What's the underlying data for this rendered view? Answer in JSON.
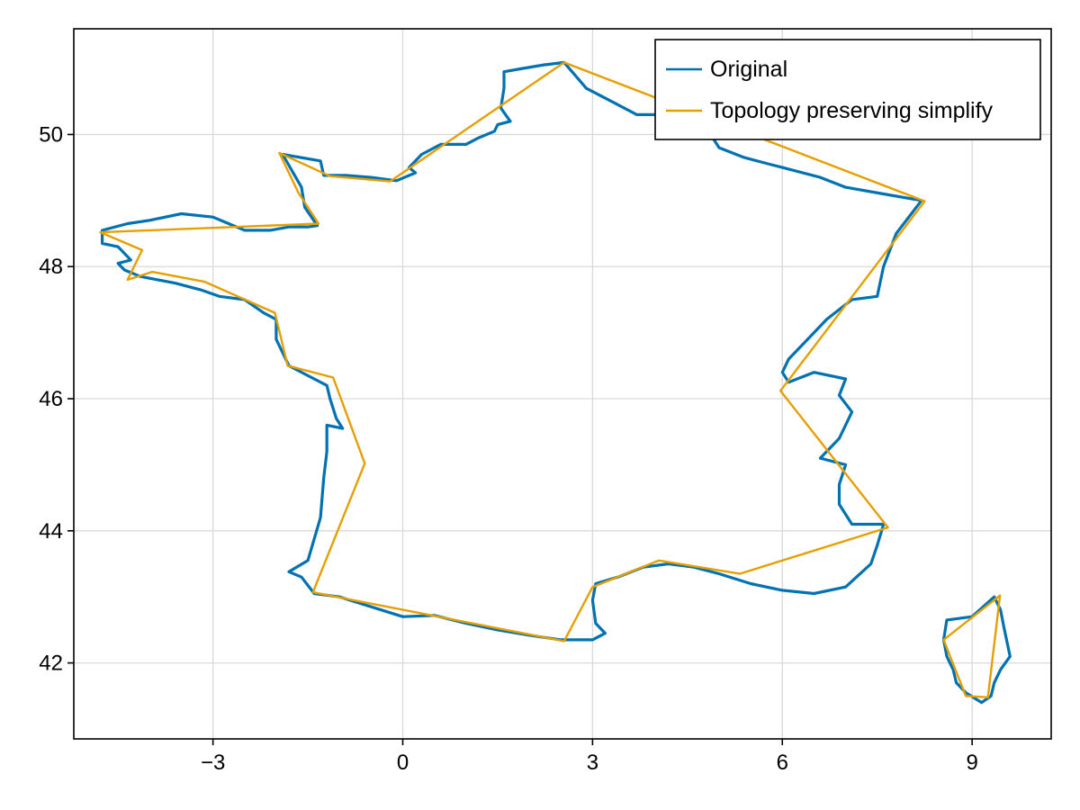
{
  "chart_data": {
    "type": "line",
    "title": "",
    "xlabel": "",
    "ylabel": "",
    "xlim": [
      -5.2,
      10.25
    ],
    "ylim": [
      40.85,
      51.6
    ],
    "xticks": [
      -3,
      0,
      3,
      6,
      9
    ],
    "xtick_labels": [
      "−3",
      "0",
      "3",
      "6",
      "9"
    ],
    "yticks": [
      42,
      44,
      46,
      48,
      50
    ],
    "ytick_labels": [
      "42",
      "44",
      "46",
      "48",
      "50"
    ],
    "grid": true,
    "legend": {
      "placement": "top-right",
      "entries": [
        "Original",
        "Topology preserving simplify"
      ]
    },
    "series": [
      {
        "name": "Original",
        "color": "#0072B2",
        "parts": [
          [
            [
              2.55,
              51.09
            ],
            [
              2.2,
              51.05
            ],
            [
              1.9,
              51.0
            ],
            [
              1.6,
              50.95
            ],
            [
              1.6,
              50.7
            ],
            [
              1.55,
              50.4
            ],
            [
              1.7,
              50.2
            ],
            [
              1.5,
              50.15
            ],
            [
              1.45,
              50.05
            ],
            [
              1.2,
              49.95
            ],
            [
              1.0,
              49.85
            ],
            [
              0.6,
              49.85
            ],
            [
              0.3,
              49.7
            ],
            [
              0.1,
              49.5
            ],
            [
              0.2,
              49.42
            ],
            [
              -0.1,
              49.3
            ],
            [
              -0.5,
              49.35
            ],
            [
              -0.9,
              49.38
            ],
            [
              -1.25,
              49.38
            ],
            [
              -1.3,
              49.6
            ],
            [
              -1.9,
              49.7
            ],
            [
              -1.75,
              49.45
            ],
            [
              -1.6,
              49.2
            ],
            [
              -1.55,
              48.9
            ],
            [
              -1.35,
              48.62
            ],
            [
              -1.5,
              48.6
            ],
            [
              -1.8,
              48.6
            ],
            [
              -2.1,
              48.55
            ],
            [
              -2.5,
              48.55
            ],
            [
              -3.0,
              48.75
            ],
            [
              -3.5,
              48.8
            ],
            [
              -4.0,
              48.7
            ],
            [
              -4.35,
              48.65
            ],
            [
              -4.75,
              48.55
            ],
            [
              -4.75,
              48.35
            ],
            [
              -4.5,
              48.3
            ],
            [
              -4.3,
              48.1
            ],
            [
              -4.5,
              48.05
            ],
            [
              -4.4,
              47.95
            ],
            [
              -4.15,
              47.85
            ],
            [
              -3.6,
              47.75
            ],
            [
              -3.2,
              47.65
            ],
            [
              -2.9,
              47.55
            ],
            [
              -2.5,
              47.5
            ],
            [
              -2.2,
              47.3
            ],
            [
              -2.0,
              47.2
            ],
            [
              -2.0,
              46.9
            ],
            [
              -1.8,
              46.5
            ],
            [
              -1.4,
              46.3
            ],
            [
              -1.2,
              46.2
            ],
            [
              -1.15,
              46.0
            ],
            [
              -1.05,
              45.7
            ],
            [
              -0.95,
              45.55
            ],
            [
              -1.2,
              45.6
            ],
            [
              -1.2,
              45.2
            ],
            [
              -1.25,
              44.8
            ],
            [
              -1.3,
              44.2
            ],
            [
              -1.5,
              43.55
            ],
            [
              -1.8,
              43.38
            ],
            [
              -1.6,
              43.3
            ],
            [
              -1.4,
              43.05
            ],
            [
              -1.0,
              43.0
            ],
            [
              -0.5,
              42.85
            ],
            [
              0.0,
              42.7
            ],
            [
              0.5,
              42.72
            ],
            [
              1.0,
              42.6
            ],
            [
              1.5,
              42.5
            ],
            [
              2.0,
              42.42
            ],
            [
              2.5,
              42.35
            ],
            [
              3.0,
              42.35
            ],
            [
              3.2,
              42.45
            ],
            [
              3.05,
              42.6
            ],
            [
              3.0,
              42.95
            ],
            [
              3.05,
              43.2
            ],
            [
              3.4,
              43.3
            ],
            [
              3.8,
              43.45
            ],
            [
              4.2,
              43.5
            ],
            [
              4.6,
              43.45
            ],
            [
              5.0,
              43.35
            ],
            [
              5.5,
              43.2
            ],
            [
              6.0,
              43.1
            ],
            [
              6.5,
              43.05
            ],
            [
              7.0,
              43.15
            ],
            [
              7.4,
              43.5
            ],
            [
              7.5,
              43.78
            ],
            [
              7.6,
              44.1
            ],
            [
              7.1,
              44.1
            ],
            [
              6.9,
              44.4
            ],
            [
              6.9,
              44.7
            ],
            [
              7.0,
              45.0
            ],
            [
              6.6,
              45.1
            ],
            [
              6.9,
              45.4
            ],
            [
              7.1,
              45.8
            ],
            [
              6.9,
              46.05
            ],
            [
              7.0,
              46.3
            ],
            [
              6.5,
              46.4
            ],
            [
              6.1,
              46.25
            ],
            [
              6.0,
              46.4
            ],
            [
              6.1,
              46.6
            ],
            [
              6.4,
              46.9
            ],
            [
              6.7,
              47.2
            ],
            [
              7.1,
              47.5
            ],
            [
              7.5,
              47.55
            ],
            [
              7.6,
              48.0
            ],
            [
              7.8,
              48.5
            ],
            [
              8.2,
              49.0
            ],
            [
              7.6,
              49.1
            ],
            [
              7.0,
              49.2
            ],
            [
              6.6,
              49.35
            ],
            [
              6.0,
              49.5
            ],
            [
              5.8,
              49.55
            ],
            [
              5.4,
              49.65
            ],
            [
              5.0,
              49.8
            ],
            [
              4.8,
              50.1
            ],
            [
              4.2,
              50.3
            ],
            [
              3.7,
              50.3
            ],
            [
              3.3,
              50.5
            ],
            [
              2.9,
              50.7
            ],
            [
              2.55,
              51.09
            ]
          ],
          [
            [
              8.55,
              42.35
            ],
            [
              8.6,
              42.65
            ],
            [
              9.0,
              42.7
            ],
            [
              9.35,
              43.0
            ],
            [
              9.45,
              42.8
            ],
            [
              9.5,
              42.55
            ],
            [
              9.6,
              42.1
            ],
            [
              9.45,
              41.9
            ],
            [
              9.35,
              41.7
            ],
            [
              9.3,
              41.5
            ],
            [
              9.15,
              41.4
            ],
            [
              8.9,
              41.55
            ],
            [
              8.75,
              41.7
            ],
            [
              8.7,
              41.9
            ],
            [
              8.6,
              42.1
            ],
            [
              8.55,
              42.35
            ]
          ]
        ]
      },
      {
        "name": "Topology preserving simplify",
        "color": "#E69F00",
        "parts": [
          [
            [
              2.55,
              51.09
            ],
            [
              8.25,
              48.99
            ],
            [
              5.97,
              46.12
            ],
            [
              7.67,
              44.05
            ],
            [
              5.33,
              43.35
            ],
            [
              4.05,
              43.55
            ],
            [
              3.0,
              43.15
            ],
            [
              2.55,
              42.33
            ],
            [
              -1.42,
              43.07
            ],
            [
              -0.6,
              45.02
            ],
            [
              -1.1,
              46.32
            ],
            [
              -1.82,
              46.5
            ],
            [
              -2.02,
              47.3
            ],
            [
              -3.13,
              47.77
            ],
            [
              -3.96,
              47.92
            ],
            [
              -4.35,
              47.8
            ],
            [
              -4.12,
              48.25
            ],
            [
              -4.78,
              48.52
            ],
            [
              -1.33,
              48.65
            ],
            [
              -1.65,
              49.12
            ],
            [
              -1.95,
              49.72
            ],
            [
              -1.15,
              49.37
            ],
            [
              -0.2,
              49.29
            ],
            [
              2.55,
              51.09
            ]
          ],
          [
            [
              9.44,
              43.02
            ],
            [
              8.55,
              42.35
            ],
            [
              8.9,
              41.5
            ],
            [
              9.25,
              41.48
            ],
            [
              9.44,
              43.02
            ]
          ]
        ]
      }
    ]
  }
}
